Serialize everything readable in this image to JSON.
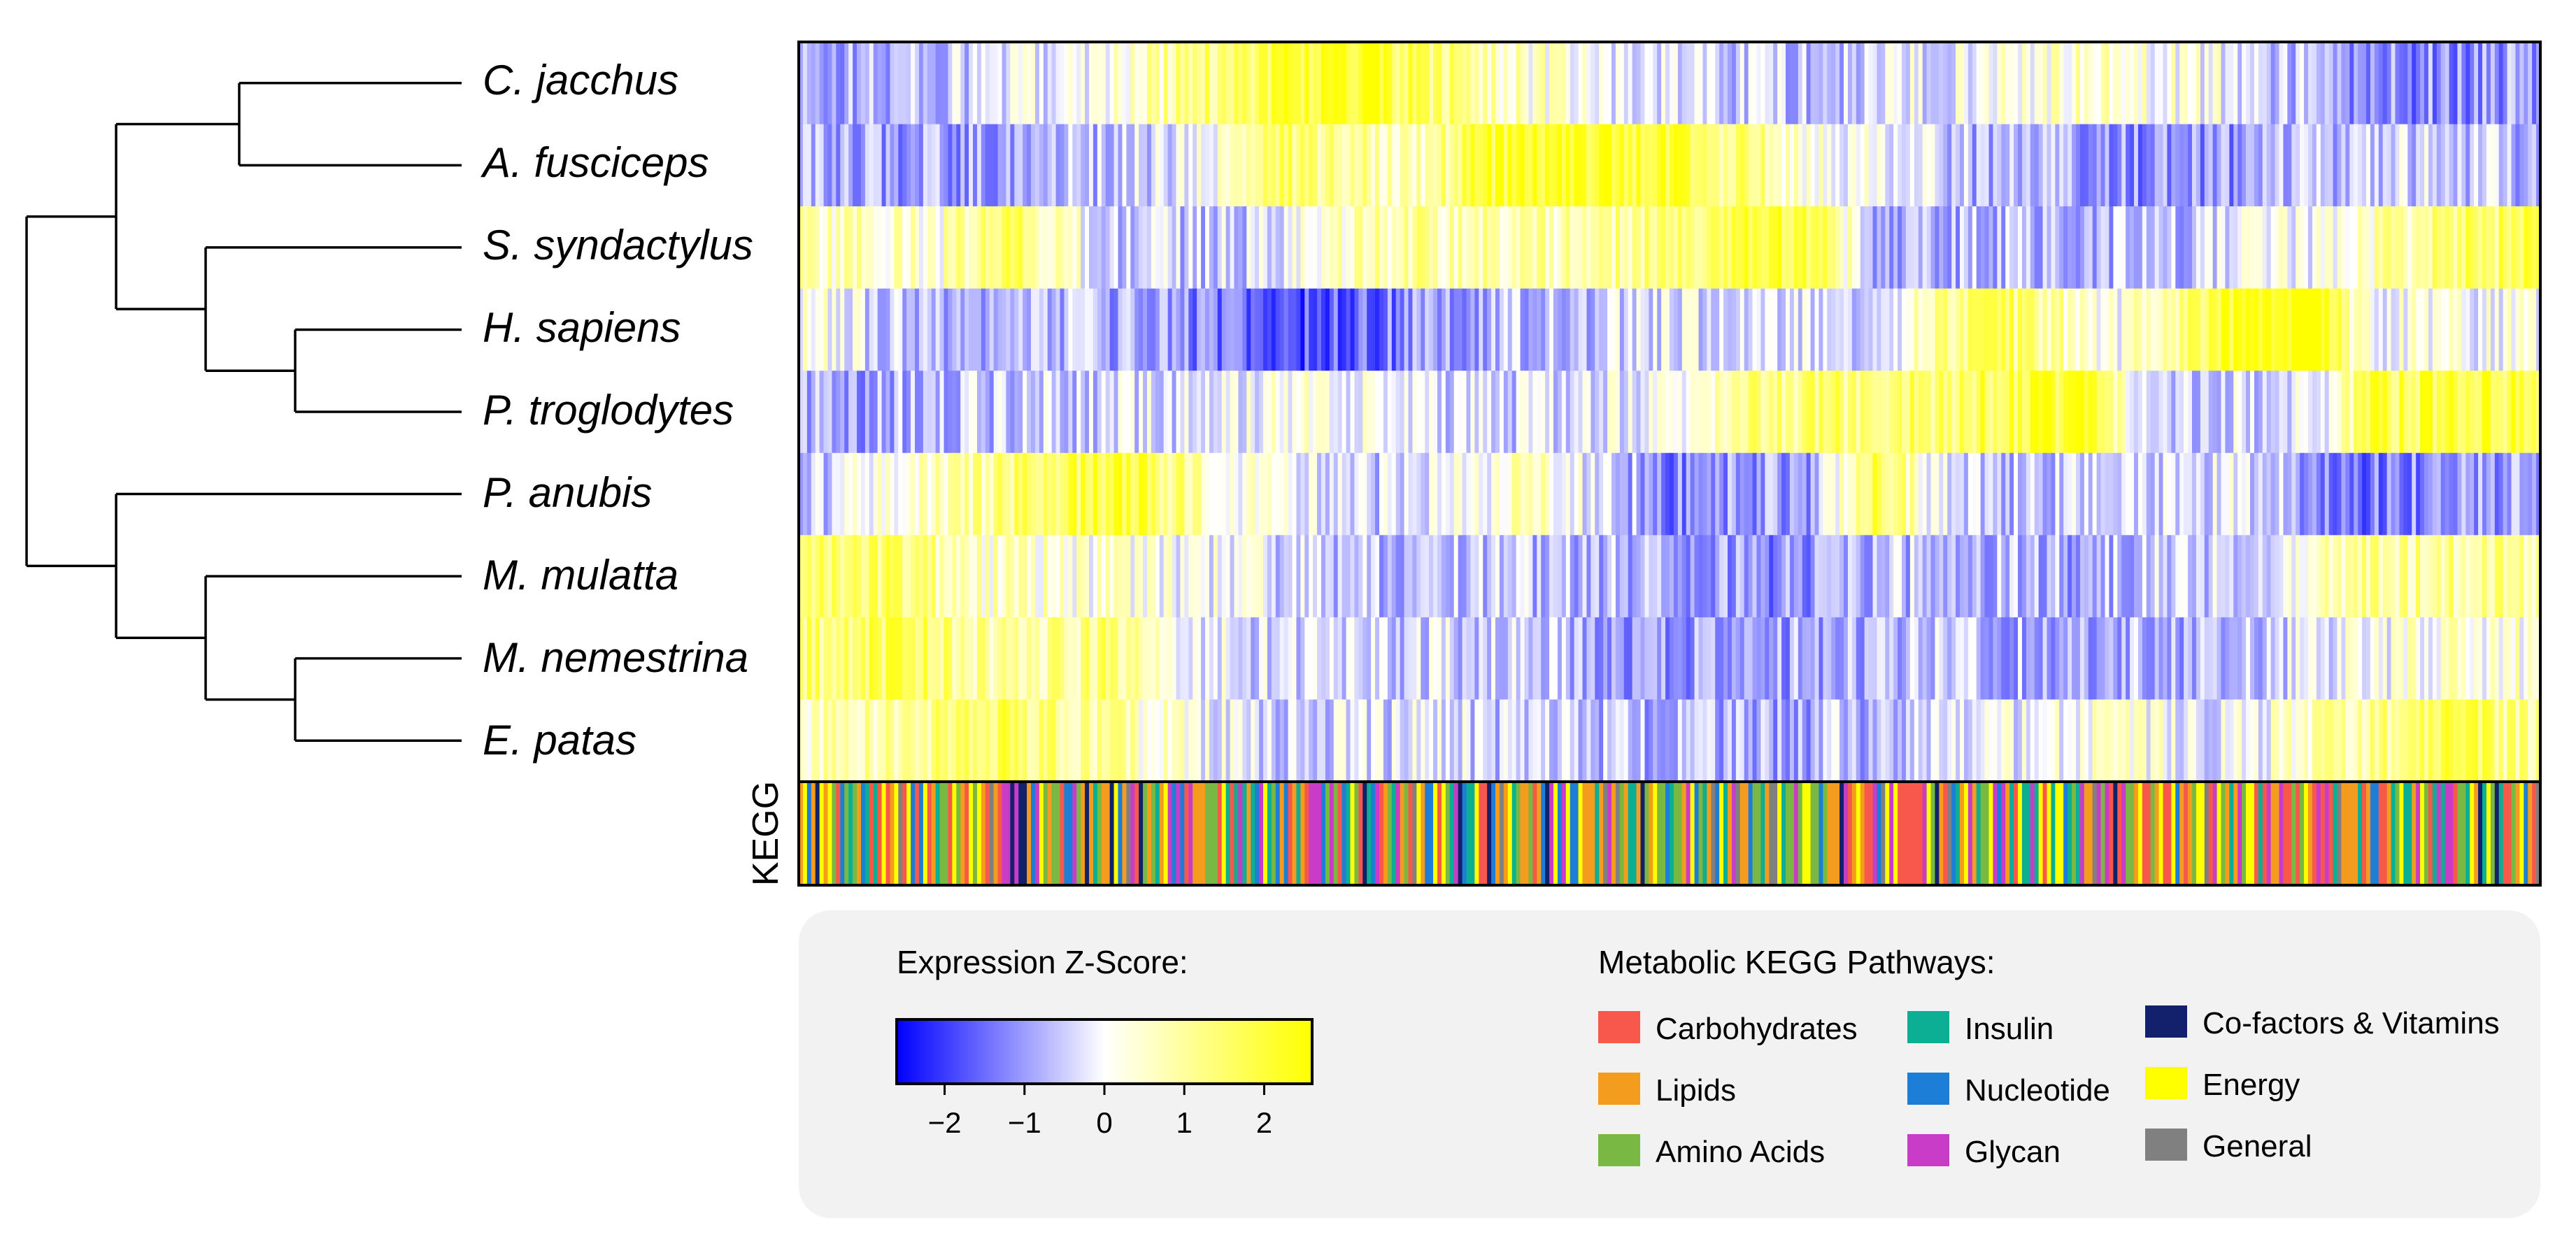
{
  "chart_data": {
    "type": "heatmap",
    "title": "",
    "species": [
      "C. jacchus",
      "A. fusciceps",
      "S. syndactylus",
      "H. sapiens",
      "P. troglodytes",
      "P. anubis",
      "M. mulatta",
      "M. nemestrina",
      "E. patas"
    ],
    "column_count": 420,
    "color_scale": {
      "label": "Expression Z-Score:",
      "min": -2.6,
      "max": 2.6,
      "ticks": [
        -2,
        -1,
        0,
        1,
        2
      ],
      "tick_labels": [
        "−2",
        "−1",
        "0",
        "1",
        "2"
      ],
      "low_color": "#0000ff",
      "mid_color": "#ffffff",
      "high_color": "#ffff00"
    },
    "row_profiles": {
      "C. jacchus": [
        [
          0.0,
          -1.0
        ],
        [
          0.1,
          -0.5
        ],
        [
          0.18,
          0.3
        ],
        [
          0.25,
          1.6
        ],
        [
          0.31,
          2.3
        ],
        [
          0.46,
          -0.2
        ],
        [
          0.6,
          -0.6
        ],
        [
          0.72,
          0.5
        ],
        [
          0.8,
          0.2
        ],
        [
          0.9,
          -1.2
        ],
        [
          1.0,
          -1.0
        ]
      ],
      "A. fusciceps": [
        [
          0.0,
          -0.8
        ],
        [
          0.1,
          -1.0
        ],
        [
          0.22,
          -0.3
        ],
        [
          0.28,
          1.4
        ],
        [
          0.36,
          0.8
        ],
        [
          0.4,
          2.2
        ],
        [
          0.5,
          2.0
        ],
        [
          0.58,
          0.5
        ],
        [
          0.66,
          -0.6
        ],
        [
          0.8,
          -1.2
        ],
        [
          0.92,
          -0.4
        ],
        [
          1.0,
          -0.7
        ]
      ],
      "S. syndactylus": [
        [
          0.0,
          0.8
        ],
        [
          0.08,
          0.4
        ],
        [
          0.12,
          1.8
        ],
        [
          0.18,
          -0.6
        ],
        [
          0.27,
          -0.4
        ],
        [
          0.34,
          0.9
        ],
        [
          0.45,
          0.8
        ],
        [
          0.52,
          1.6
        ],
        [
          0.58,
          2.0
        ],
        [
          0.62,
          -0.8
        ],
        [
          0.8,
          -0.6
        ],
        [
          0.88,
          0.2
        ],
        [
          0.95,
          1.4
        ],
        [
          1.0,
          1.6
        ]
      ],
      "H. sapiens": [
        [
          0.0,
          0.3
        ],
        [
          0.08,
          -1.0
        ],
        [
          0.16,
          -0.6
        ],
        [
          0.24,
          -1.4
        ],
        [
          0.3,
          -1.8
        ],
        [
          0.38,
          -0.8
        ],
        [
          0.5,
          -0.3
        ],
        [
          0.62,
          -0.2
        ],
        [
          0.68,
          1.8
        ],
        [
          0.76,
          0.2
        ],
        [
          0.82,
          2.3
        ],
        [
          0.87,
          2.5
        ],
        [
          0.9,
          0.1
        ],
        [
          1.0,
          0.0
        ]
      ],
      "P. troglodytes": [
        [
          0.0,
          -1.0
        ],
        [
          0.1,
          -0.6
        ],
        [
          0.2,
          -0.4
        ],
        [
          0.3,
          0.2
        ],
        [
          0.4,
          -0.5
        ],
        [
          0.5,
          0.1
        ],
        [
          0.55,
          1.2
        ],
        [
          0.65,
          1.6
        ],
        [
          0.74,
          2.2
        ],
        [
          0.77,
          -0.4
        ],
        [
          0.88,
          -0.3
        ],
        [
          0.9,
          1.8
        ],
        [
          1.0,
          1.9
        ]
      ],
      "P. anubis": [
        [
          0.0,
          -0.8
        ],
        [
          0.06,
          0.5
        ],
        [
          0.14,
          1.4
        ],
        [
          0.19,
          2.1
        ],
        [
          0.24,
          0.4
        ],
        [
          0.32,
          -0.6
        ],
        [
          0.42,
          0.6
        ],
        [
          0.5,
          -1.2
        ],
        [
          0.58,
          -0.9
        ],
        [
          0.62,
          2.0
        ],
        [
          0.66,
          -0.5
        ],
        [
          0.74,
          -0.6
        ],
        [
          0.82,
          -0.2
        ],
        [
          0.9,
          -1.3
        ],
        [
          1.0,
          -0.8
        ]
      ],
      "M. mulatta": [
        [
          0.0,
          1.8
        ],
        [
          0.06,
          1.4
        ],
        [
          0.12,
          0.4
        ],
        [
          0.2,
          0.3
        ],
        [
          0.3,
          -0.6
        ],
        [
          0.4,
          -0.5
        ],
        [
          0.5,
          -0.9
        ],
        [
          0.56,
          -1.2
        ],
        [
          0.64,
          -0.6
        ],
        [
          0.74,
          -0.8
        ],
        [
          0.84,
          -0.2
        ],
        [
          0.9,
          1.2
        ],
        [
          1.0,
          1.0
        ]
      ],
      "M. nemestrina": [
        [
          0.0,
          1.4
        ],
        [
          0.06,
          1.7
        ],
        [
          0.12,
          0.8
        ],
        [
          0.18,
          1.3
        ],
        [
          0.22,
          -0.2
        ],
        [
          0.3,
          -0.4
        ],
        [
          0.4,
          -0.4
        ],
        [
          0.5,
          -1.0
        ],
        [
          0.56,
          -0.9
        ],
        [
          0.64,
          -0.6
        ],
        [
          0.76,
          -0.8
        ],
        [
          0.86,
          -0.4
        ],
        [
          0.93,
          0.3
        ],
        [
          1.0,
          0.4
        ]
      ],
      "E. patas": [
        [
          0.0,
          0.4
        ],
        [
          0.06,
          1.2
        ],
        [
          0.12,
          1.6
        ],
        [
          0.18,
          0.8
        ],
        [
          0.26,
          -0.4
        ],
        [
          0.36,
          -0.3
        ],
        [
          0.45,
          -0.6
        ],
        [
          0.55,
          -0.9
        ],
        [
          0.65,
          -0.5
        ],
        [
          0.75,
          0.4
        ],
        [
          0.82,
          -0.2
        ],
        [
          0.9,
          1.0
        ],
        [
          0.95,
          1.8
        ],
        [
          1.0,
          0.9
        ]
      ]
    },
    "kegg_band_label": "KEGG",
    "kegg_legend_title": "Metabolic KEGG Pathways:",
    "kegg_categories": [
      {
        "name": "Carbohydrates",
        "color": "#f8584c"
      },
      {
        "name": "Lipids",
        "color": "#f39c1d"
      },
      {
        "name": "Amino Acids",
        "color": "#78b843"
      },
      {
        "name": "Insulin",
        "color": "#0cae94"
      },
      {
        "name": "Nucleotide",
        "color": "#1c7ed6"
      },
      {
        "name": "Glycan",
        "color": "#c83cc8"
      },
      {
        "name": "Co-factors & Vitamins",
        "color": "#13206b"
      },
      {
        "name": "Energy",
        "color": "#ffff00"
      },
      {
        "name": "General",
        "color": "#808080"
      }
    ],
    "kegg_segments": [
      {
        "start": 0.0,
        "end": 0.3,
        "weights": [
          3,
          4,
          4,
          3,
          2,
          2,
          1,
          3,
          1
        ]
      },
      {
        "start": 0.3,
        "end": 0.45,
        "weights": [
          1,
          2,
          3,
          3,
          3,
          3,
          2,
          2,
          1
        ]
      },
      {
        "start": 0.45,
        "end": 0.6,
        "weights": [
          1,
          5,
          3,
          2,
          1,
          1,
          1,
          2,
          1
        ]
      },
      {
        "start": 0.6,
        "end": 0.75,
        "weights": [
          2,
          3,
          2,
          2,
          2,
          2,
          1,
          3,
          1
        ]
      },
      {
        "start": 0.75,
        "end": 0.92,
        "weights": [
          5,
          3,
          3,
          2,
          1,
          2,
          1,
          2,
          1
        ]
      },
      {
        "start": 0.92,
        "end": 1.0,
        "weights": [
          3,
          3,
          3,
          3,
          1,
          2,
          1,
          3,
          1
        ]
      }
    ],
    "dendrogram": {
      "tree": [
        [
          [
            0,
            1
          ],
          [
            2,
            [
              3,
              4
            ]
          ]
        ],
        [
          5,
          [
            6,
            [
              7,
              8
            ]
          ]
        ]
      ]
    }
  }
}
